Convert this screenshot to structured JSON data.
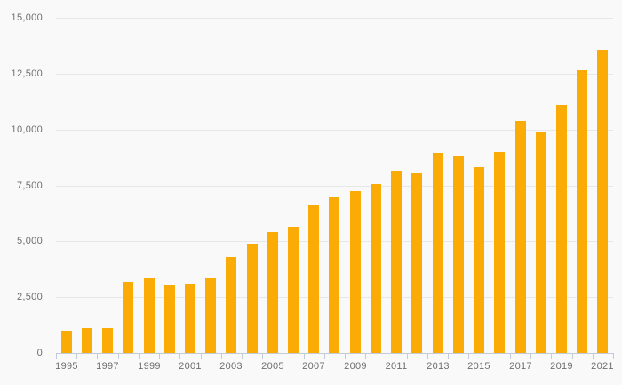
{
  "chart_data": {
    "type": "bar",
    "title": "",
    "xlabel": "",
    "ylabel": "",
    "categories": [
      "1995",
      "1996",
      "1997",
      "1998",
      "1999",
      "2000",
      "2001",
      "2002",
      "2003",
      "2004",
      "2005",
      "2006",
      "2007",
      "2008",
      "2009",
      "2010",
      "2011",
      "2012",
      "2013",
      "2014",
      "2015",
      "2016",
      "2017",
      "2018",
      "2019",
      "2020",
      "2021"
    ],
    "values": [
      1000,
      1100,
      1100,
      3200,
      3350,
      3080,
      3100,
      3350,
      4280,
      4900,
      5400,
      5650,
      6600,
      6950,
      7250,
      7550,
      8150,
      8050,
      8950,
      8800,
      8300,
      9000,
      10400,
      9900,
      11100,
      12650,
      13550
    ],
    "ylim": [
      0,
      15000
    ],
    "y_ticks": [
      0,
      2500,
      5000,
      7500,
      10000,
      12500,
      15000
    ],
    "y_tick_labels": [
      "0",
      "2,500",
      "5,000",
      "7,500",
      "10,000",
      "12,500",
      "15,000"
    ],
    "x_labeled_categories": [
      "1995",
      "1997",
      "1999",
      "2001",
      "2003",
      "2005",
      "2007",
      "2009",
      "2011",
      "2013",
      "2015",
      "2017",
      "2019",
      "2021"
    ],
    "x_label_every": 2,
    "grid": "horizontal",
    "legend": "none",
    "colors": {
      "bar": "#FAAB05",
      "background": "#F9F9F9",
      "gridline": "#E7E7E7",
      "axis": "#C3CBDB",
      "label": "#6E6E6E"
    }
  }
}
